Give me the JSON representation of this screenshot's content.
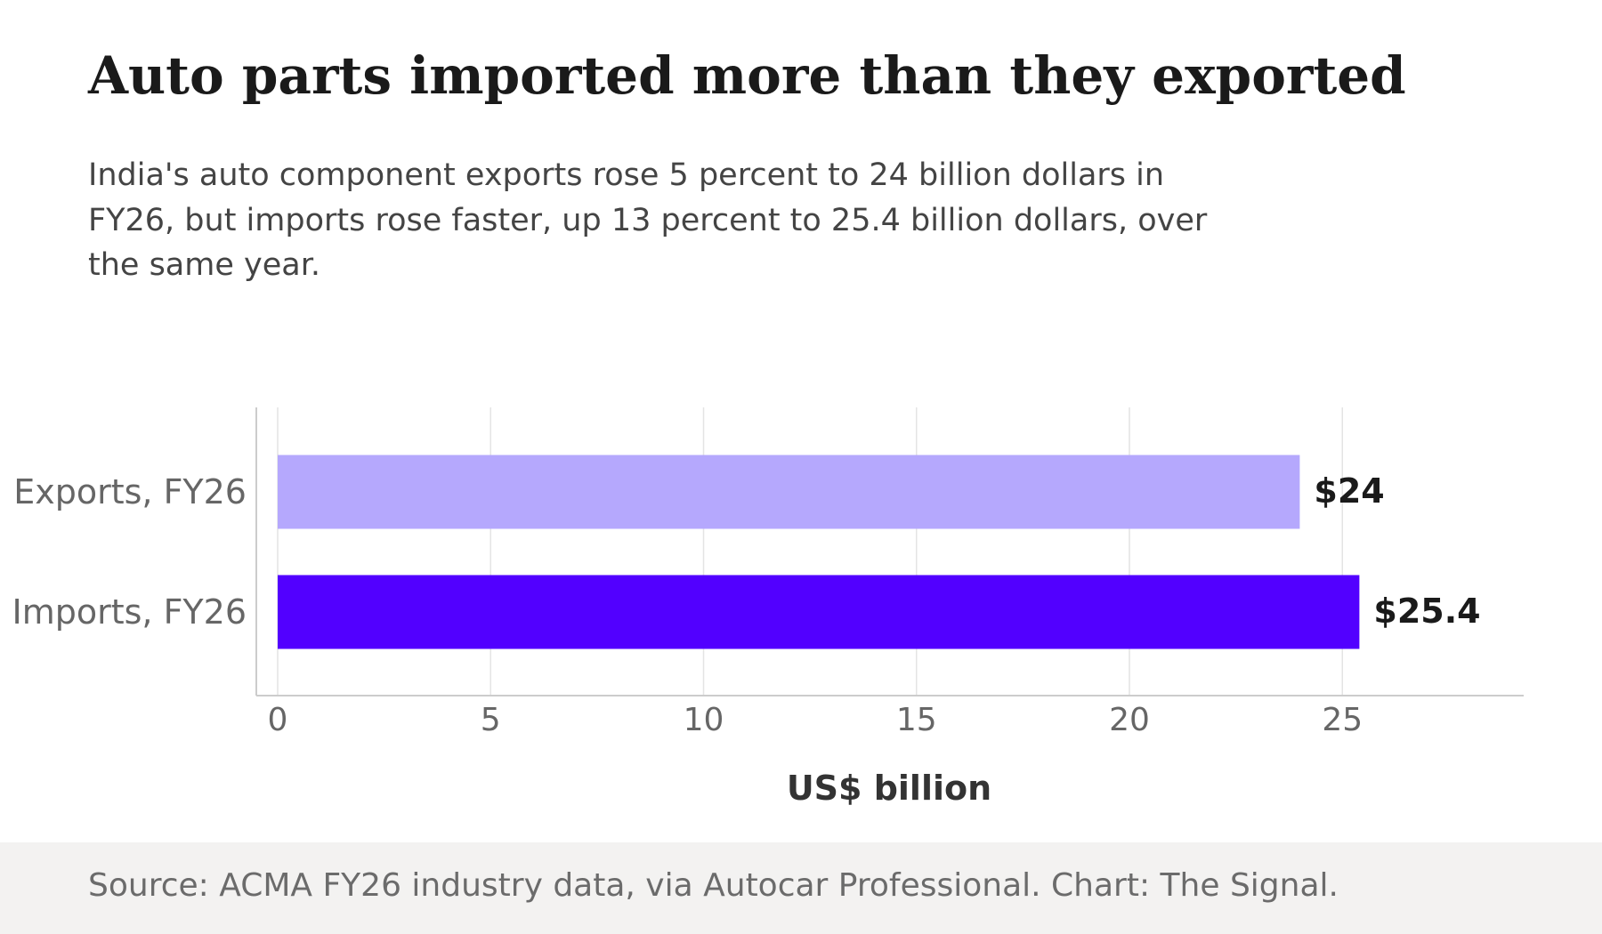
{
  "title": "Auto parts imported more than they exported",
  "subtitle": "India's auto component exports rose 5 percent to 24 billion dollars in FY26, but imports rose faster, up 13 percent to 25.4 billion dollars, over the same year.",
  "source": "Source: ACMA FY26 industry data, via Autocar Professional. Chart: The Signal.",
  "colors": {
    "exports": "#b5a8fd",
    "imports": "#5200ff",
    "grid": "#e4e4e4",
    "axis": "#cccccc",
    "tick_text": "#666666",
    "label_text": "#1a1a1a",
    "footer_bg": "#f3f2f1"
  },
  "chart_data": {
    "type": "bar",
    "orientation": "horizontal",
    "categories": [
      "Exports, FY26",
      "Imports, FY26"
    ],
    "values": [
      24,
      25.4
    ],
    "value_labels": [
      "$24",
      "$25.4"
    ],
    "xlabel": "US$ billion",
    "ylabel": "",
    "xlim": [
      0,
      29
    ],
    "xticks": [
      0,
      5,
      10,
      15,
      20,
      25
    ],
    "grid": true,
    "legend": "none"
  }
}
